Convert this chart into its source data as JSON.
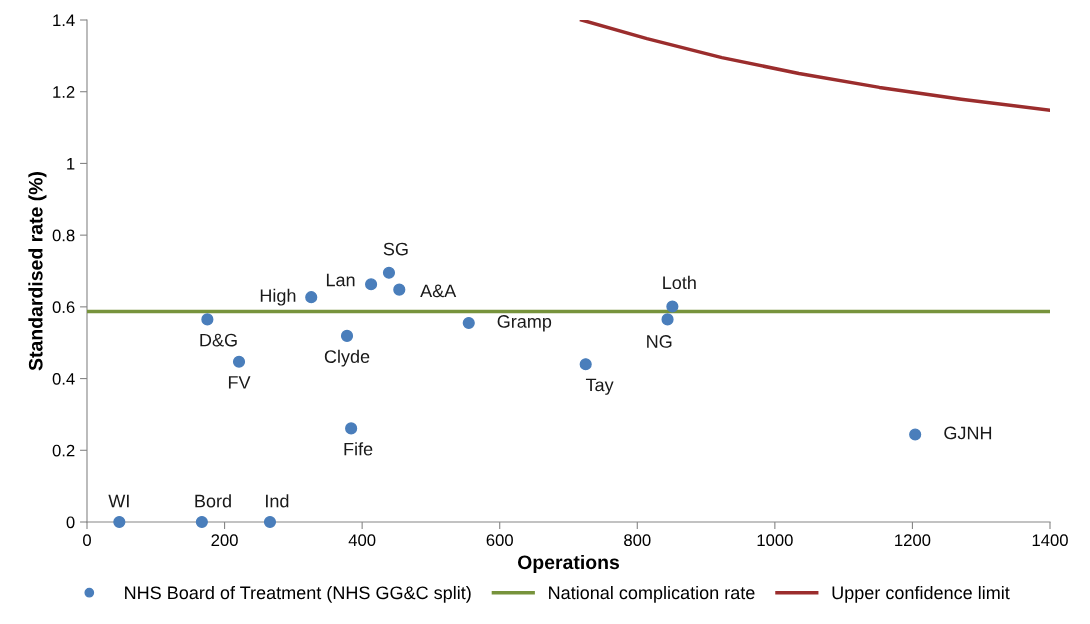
{
  "chart_data": {
    "type": "scatter",
    "xlabel": "Operations",
    "ylabel": "Standardised rate (%)",
    "xlim": [
      0,
      1400
    ],
    "xticks": [
      0,
      200,
      400,
      600,
      800,
      1000,
      1200,
      1400
    ],
    "ylim": [
      0,
      1.4
    ],
    "yticks": [
      0,
      0.2,
      0.4,
      0.6,
      0.8,
      1,
      1.2,
      1.4
    ],
    "grid": false,
    "legend": "bottom",
    "series": [
      {
        "name": "NHS Board of Treatment (NHS GG&C split)",
        "marker": "circle",
        "color": "#4a7ebb",
        "x": [
          47,
          167,
          266,
          175,
          221,
          326,
          413,
          439,
          454,
          378,
          384,
          555,
          851,
          844,
          725,
          1204
        ],
        "values": [
          0,
          0,
          0,
          0.565,
          0.447,
          0.627,
          0.663,
          0.695,
          0.648,
          0.519,
          0.261,
          0.555,
          0.601,
          0.565,
          0.44,
          0.244
        ]
      },
      {
        "name": "National complication rate",
        "type": "line",
        "color": "#77933c",
        "marker": "none",
        "x": [
          0,
          1400
        ],
        "values": [
          0.587,
          0.587
        ]
      },
      {
        "name": "Upper confidence limit",
        "type": "line",
        "color": "#9b2d2d",
        "marker": "none",
        "x": [
          719,
          814,
          923,
          1035,
          1152,
          1271,
          1400
        ],
        "values": [
          1.4,
          1.348,
          1.295,
          1.251,
          1.212,
          1.179,
          1.148
        ]
      }
    ],
    "annotations": [
      {
        "text": "WI",
        "x": 47,
        "y": 0
      },
      {
        "text": "Bord",
        "x": 167,
        "y": 0
      },
      {
        "text": "Ind",
        "x": 266,
        "y": 0
      },
      {
        "text": "D&G",
        "x": 175,
        "y": 0.565
      },
      {
        "text": "FV",
        "x": 221,
        "y": 0.447
      },
      {
        "text": "High",
        "x": 326,
        "y": 0.627
      },
      {
        "text": "Lan",
        "x": 413,
        "y": 0.663
      },
      {
        "text": "SG",
        "x": 439,
        "y": 0.695
      },
      {
        "text": "A&A",
        "x": 454,
        "y": 0.648
      },
      {
        "text": "Clyde",
        "x": 378,
        "y": 0.519
      },
      {
        "text": "Fife",
        "x": 384,
        "y": 0.261
      },
      {
        "text": "Gramp",
        "x": 555,
        "y": 0.555
      },
      {
        "text": "Loth",
        "x": 851,
        "y": 0.601
      },
      {
        "text": "NG",
        "x": 844,
        "y": 0.565
      },
      {
        "text": "Tay",
        "x": 725,
        "y": 0.44
      },
      {
        "text": "GJNH",
        "x": 1204,
        "y": 0.244
      }
    ]
  }
}
